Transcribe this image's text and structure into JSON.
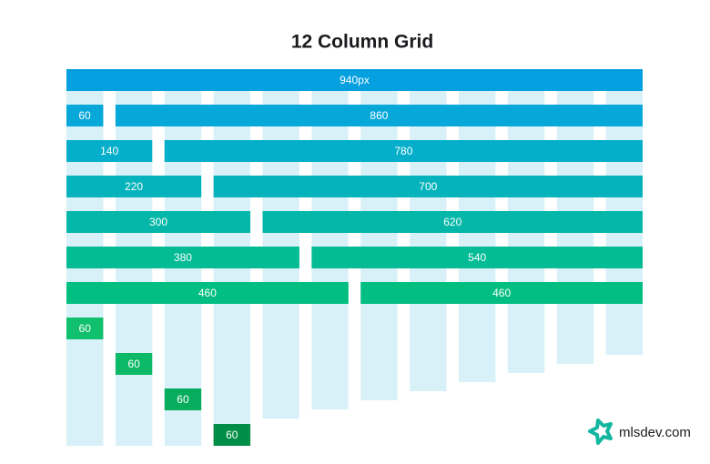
{
  "header": {
    "title": "12 Column Grid"
  },
  "rows": [
    [
      "940px"
    ],
    [
      "60",
      "860"
    ],
    [
      "140",
      "780"
    ],
    [
      "220",
      "700"
    ],
    [
      "300",
      "620"
    ],
    [
      "380",
      "540"
    ],
    [
      "460",
      "460"
    ]
  ],
  "blocks": [
    "60",
    "60",
    "60",
    "60"
  ],
  "footer": {
    "brand": "mlsdev.com"
  }
}
